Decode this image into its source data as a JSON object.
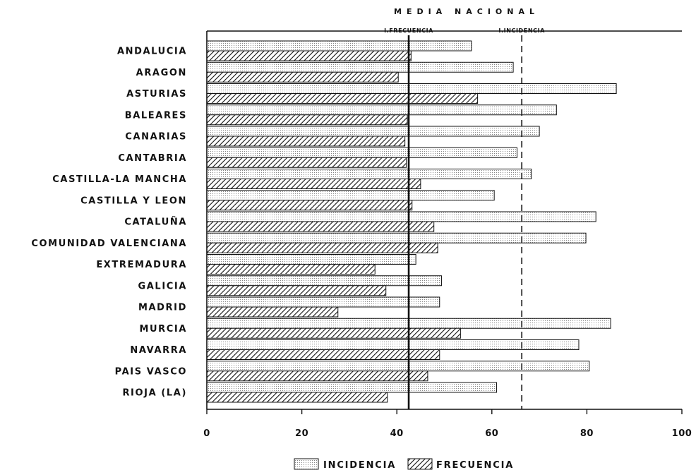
{
  "chart_data": {
    "type": "bar",
    "orientation": "horizontal",
    "title": "MEDIA NACIONAL",
    "categories": [
      "ANDALUCIA",
      "ARAGON",
      "ASTURIAS",
      "BALEARES",
      "CANARIAS",
      "CANTABRIA",
      "CASTILLA-LA MANCHA",
      "CASTILLA Y LEON",
      "CATALUÑA",
      "COMUNIDAD VALENCIANA",
      "EXTREMADURA",
      "GALICIA",
      "MADRID",
      "MURCIA",
      "NAVARRA",
      "PAIS VASCO",
      "RIOJA (LA)"
    ],
    "series": [
      {
        "name": "INCIDENCIA",
        "pattern": "dotted",
        "values": [
          55.7,
          64.5,
          86.2,
          73.6,
          70.0,
          65.3,
          68.3,
          60.5,
          81.9,
          79.8,
          44.0,
          49.4,
          49.0,
          85.0,
          78.3,
          80.5,
          61.0
        ]
      },
      {
        "name": "FRECUENCIA",
        "pattern": "hatched",
        "values": [
          43.0,
          40.3,
          57.0,
          42.2,
          41.7,
          42.0,
          45.0,
          43.2,
          47.8,
          48.6,
          35.4,
          37.7,
          27.6,
          53.4,
          49.0,
          46.5,
          38.0
        ]
      }
    ],
    "reference_lines": [
      {
        "label": "I.FRECUENCIA",
        "value": 42.5,
        "style": "solid"
      },
      {
        "label": "I.INCIDENCIA",
        "value": 66.3,
        "style": "dashed"
      }
    ],
    "x_ticks": [
      "0",
      "20",
      "40",
      "60",
      "80",
      "100"
    ],
    "xlim": [
      0,
      100
    ],
    "grid": false,
    "legend_position": "bottom-center"
  }
}
